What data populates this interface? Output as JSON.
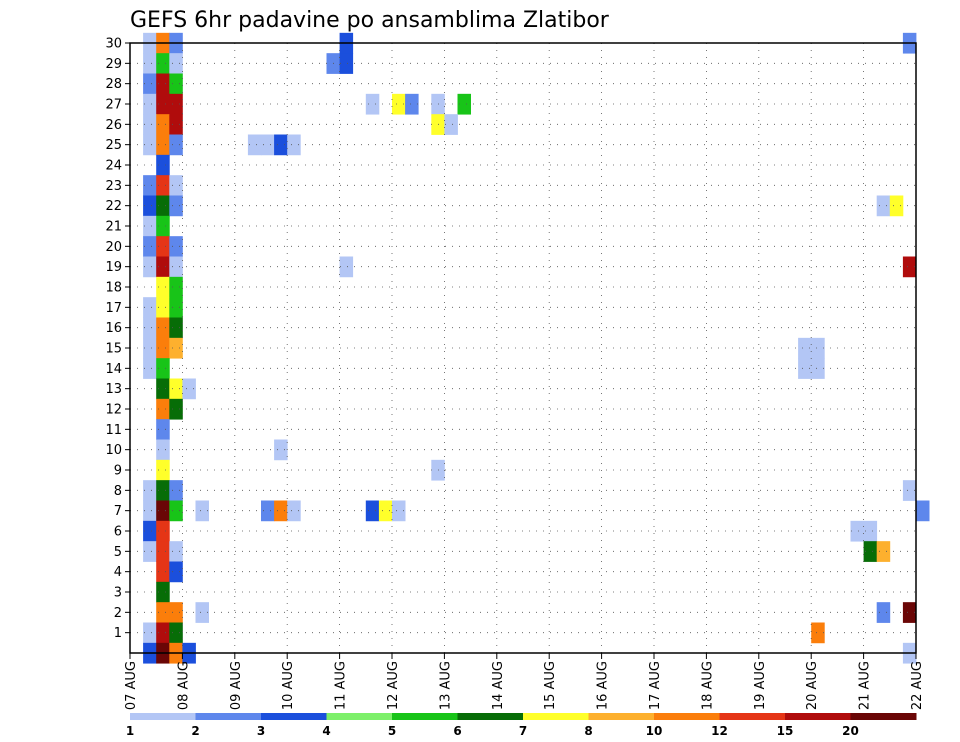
{
  "chart_data": {
    "type": "heatmap",
    "title": "GEFS 6hr padavine po ansamblima Zlatibor",
    "xlabel": "",
    "ylabel": "",
    "x_tick_labels": [
      "07 AUG",
      "08 AUG",
      "09 AUG",
      "10 AUG",
      "11 AUG",
      "12 AUG",
      "13 AUG",
      "14 AUG",
      "15 AUG",
      "16 AUG",
      "17 AUG",
      "18 AUG",
      "19 AUG",
      "20 AUG",
      "21 AUG",
      "22 AUG"
    ],
    "y_tick_labels": [
      "1",
      "2",
      "3",
      "4",
      "5",
      "6",
      "7",
      "8",
      "9",
      "10",
      "11",
      "12",
      "13",
      "14",
      "15",
      "16",
      "17",
      "18",
      "19",
      "20",
      "21",
      "22",
      "23",
      "24",
      "25",
      "26",
      "27",
      "28",
      "29",
      "30"
    ],
    "xlim": [
      "07 AUG",
      "22 AUG"
    ],
    "ylim": [
      0,
      30
    ],
    "grid": true,
    "x_step": "6hr",
    "colorbar": {
      "labels": [
        "1",
        "2",
        "3",
        "4",
        "5",
        "6",
        "7",
        "8",
        "10",
        "12",
        "15",
        "20"
      ],
      "colors": [
        "#b3c6f5",
        "#5e87ec",
        "#1b4fdc",
        "#7df06a",
        "#18c418",
        "#076d07",
        "#ffff2a",
        "#fdb02e",
        "#fb7e0b",
        "#e53516",
        "#b00c0c",
        "#6a0606"
      ]
    },
    "values": [
      {
        "member": 30,
        "col": 1,
        "v": 1.5
      },
      {
        "member": 30,
        "col": 2,
        "v": 10
      },
      {
        "member": 30,
        "col": 3,
        "v": 2
      },
      {
        "member": 30,
        "col": 16,
        "v": 3
      },
      {
        "member": 30,
        "col": 59,
        "v": 2
      },
      {
        "member": 29,
        "col": 1,
        "v": 1.5
      },
      {
        "member": 29,
        "col": 2,
        "v": 5
      },
      {
        "member": 29,
        "col": 3,
        "v": 1.5
      },
      {
        "member": 29,
        "col": 15,
        "v": 2
      },
      {
        "member": 29,
        "col": 16,
        "v": 3
      },
      {
        "member": 28,
        "col": 1,
        "v": 2
      },
      {
        "member": 28,
        "col": 2,
        "v": 15
      },
      {
        "member": 28,
        "col": 3,
        "v": 5
      },
      {
        "member": 27,
        "col": 1,
        "v": 1.5
      },
      {
        "member": 27,
        "col": 2,
        "v": 15
      },
      {
        "member": 27,
        "col": 3,
        "v": 15
      },
      {
        "member": 27,
        "col": 18,
        "v": 1.5
      },
      {
        "member": 27,
        "col": 20,
        "v": 7
      },
      {
        "member": 27,
        "col": 21,
        "v": 2
      },
      {
        "member": 27,
        "col": 23,
        "v": 1.5
      },
      {
        "member": 27,
        "col": 25,
        "v": 5
      },
      {
        "member": 26,
        "col": 1,
        "v": 1.5
      },
      {
        "member": 26,
        "col": 2,
        "v": 10
      },
      {
        "member": 26,
        "col": 3,
        "v": 15
      },
      {
        "member": 26,
        "col": 23,
        "v": 7
      },
      {
        "member": 26,
        "col": 24,
        "v": 1.5
      },
      {
        "member": 25,
        "col": 1,
        "v": 1.5
      },
      {
        "member": 25,
        "col": 2,
        "v": 10
      },
      {
        "member": 25,
        "col": 3,
        "v": 2
      },
      {
        "member": 25,
        "col": 9,
        "v": 1.5
      },
      {
        "member": 25,
        "col": 10,
        "v": 1.5
      },
      {
        "member": 25,
        "col": 11,
        "v": 3
      },
      {
        "member": 25,
        "col": 12,
        "v": 1.5
      },
      {
        "member": 24,
        "col": 2,
        "v": 3
      },
      {
        "member": 23,
        "col": 1,
        "v": 2
      },
      {
        "member": 23,
        "col": 2,
        "v": 12
      },
      {
        "member": 23,
        "col": 3,
        "v": 1.5
      },
      {
        "member": 22,
        "col": 1,
        "v": 3
      },
      {
        "member": 22,
        "col": 2,
        "v": 6
      },
      {
        "member": 22,
        "col": 3,
        "v": 2
      },
      {
        "member": 22,
        "col": 57,
        "v": 1.5
      },
      {
        "member": 22,
        "col": 58,
        "v": 7
      },
      {
        "member": 21,
        "col": 1,
        "v": 1.5
      },
      {
        "member": 21,
        "col": 2,
        "v": 5
      },
      {
        "member": 20,
        "col": 1,
        "v": 2
      },
      {
        "member": 20,
        "col": 2,
        "v": 12
      },
      {
        "member": 20,
        "col": 3,
        "v": 2
      },
      {
        "member": 19,
        "col": 1,
        "v": 1.5
      },
      {
        "member": 19,
        "col": 2,
        "v": 15
      },
      {
        "member": 19,
        "col": 3,
        "v": 1.5
      },
      {
        "member": 19,
        "col": 16,
        "v": 1.5
      },
      {
        "member": 19,
        "col": 59,
        "v": 15
      },
      {
        "member": 18,
        "col": 2,
        "v": 7
      },
      {
        "member": 18,
        "col": 3,
        "v": 5
      },
      {
        "member": 17,
        "col": 1,
        "v": 1.5
      },
      {
        "member": 17,
        "col": 2,
        "v": 7
      },
      {
        "member": 17,
        "col": 3,
        "v": 5
      },
      {
        "member": 16,
        "col": 1,
        "v": 1.5
      },
      {
        "member": 16,
        "col": 2,
        "v": 10
      },
      {
        "member": 16,
        "col": 3,
        "v": 6
      },
      {
        "member": 15,
        "col": 1,
        "v": 1.5
      },
      {
        "member": 15,
        "col": 2,
        "v": 10
      },
      {
        "member": 15,
        "col": 3,
        "v": 8
      },
      {
        "member": 15,
        "col": 51,
        "v": 1.5
      },
      {
        "member": 15,
        "col": 52,
        "v": 1.5
      },
      {
        "member": 14,
        "col": 1,
        "v": 1.5
      },
      {
        "member": 14,
        "col": 2,
        "v": 5
      },
      {
        "member": 14,
        "col": 51,
        "v": 1.5
      },
      {
        "member": 14,
        "col": 52,
        "v": 1.5
      },
      {
        "member": 13,
        "col": 2,
        "v": 6
      },
      {
        "member": 13,
        "col": 3,
        "v": 7
      },
      {
        "member": 13,
        "col": 4,
        "v": 1.5
      },
      {
        "member": 12,
        "col": 2,
        "v": 10
      },
      {
        "member": 12,
        "col": 3,
        "v": 6
      },
      {
        "member": 11,
        "col": 2,
        "v": 2
      },
      {
        "member": 10,
        "col": 2,
        "v": 1.5
      },
      {
        "member": 10,
        "col": 11,
        "v": 1.5
      },
      {
        "member": 9,
        "col": 2,
        "v": 7
      },
      {
        "member": 9,
        "col": 23,
        "v": 1.5
      },
      {
        "member": 8,
        "col": 1,
        "v": 1.5
      },
      {
        "member": 8,
        "col": 2,
        "v": 6
      },
      {
        "member": 8,
        "col": 3,
        "v": 2
      },
      {
        "member": 8,
        "col": 59,
        "v": 1.5
      },
      {
        "member": 7,
        "col": 1,
        "v": 1.5
      },
      {
        "member": 7,
        "col": 2,
        "v": 20
      },
      {
        "member": 7,
        "col": 3,
        "v": 5
      },
      {
        "member": 7,
        "col": 5,
        "v": 1.5
      },
      {
        "member": 7,
        "col": 10,
        "v": 2
      },
      {
        "member": 7,
        "col": 11,
        "v": 10
      },
      {
        "member": 7,
        "col": 12,
        "v": 1.5
      },
      {
        "member": 7,
        "col": 18,
        "v": 3
      },
      {
        "member": 7,
        "col": 19,
        "v": 7
      },
      {
        "member": 7,
        "col": 20,
        "v": 1.5
      },
      {
        "member": 7,
        "col": 60,
        "v": 2
      },
      {
        "member": 6,
        "col": 1,
        "v": 3
      },
      {
        "member": 6,
        "col": 2,
        "v": 12
      },
      {
        "member": 6,
        "col": 55,
        "v": 1.5
      },
      {
        "member": 6,
        "col": 56,
        "v": 1.5
      },
      {
        "member": 5,
        "col": 1,
        "v": 1.5
      },
      {
        "member": 5,
        "col": 2,
        "v": 12
      },
      {
        "member": 5,
        "col": 3,
        "v": 1.5
      },
      {
        "member": 5,
        "col": 56,
        "v": 6
      },
      {
        "member": 5,
        "col": 57,
        "v": 8
      },
      {
        "member": 4,
        "col": 2,
        "v": 12
      },
      {
        "member": 4,
        "col": 3,
        "v": 3
      },
      {
        "member": 3,
        "col": 2,
        "v": 6
      },
      {
        "member": 2,
        "col": 2,
        "v": 10
      },
      {
        "member": 2,
        "col": 3,
        "v": 10
      },
      {
        "member": 2,
        "col": 5,
        "v": 1.5
      },
      {
        "member": 2,
        "col": 57,
        "v": 2
      },
      {
        "member": 2,
        "col": 59,
        "v": 20
      },
      {
        "member": 1,
        "col": 1,
        "v": 1.5
      },
      {
        "member": 1,
        "col": 2,
        "v": 15
      },
      {
        "member": 1,
        "col": 3,
        "v": 6
      },
      {
        "member": 1,
        "col": 52,
        "v": 10
      },
      {
        "member": 0,
        "col": 1,
        "v": 3
      },
      {
        "member": 0,
        "col": 2,
        "v": 20
      },
      {
        "member": 0,
        "col": 3,
        "v": 10
      },
      {
        "member": 0,
        "col": 4,
        "v": 3
      },
      {
        "member": 0,
        "col": 59,
        "v": 1.5
      }
    ]
  }
}
